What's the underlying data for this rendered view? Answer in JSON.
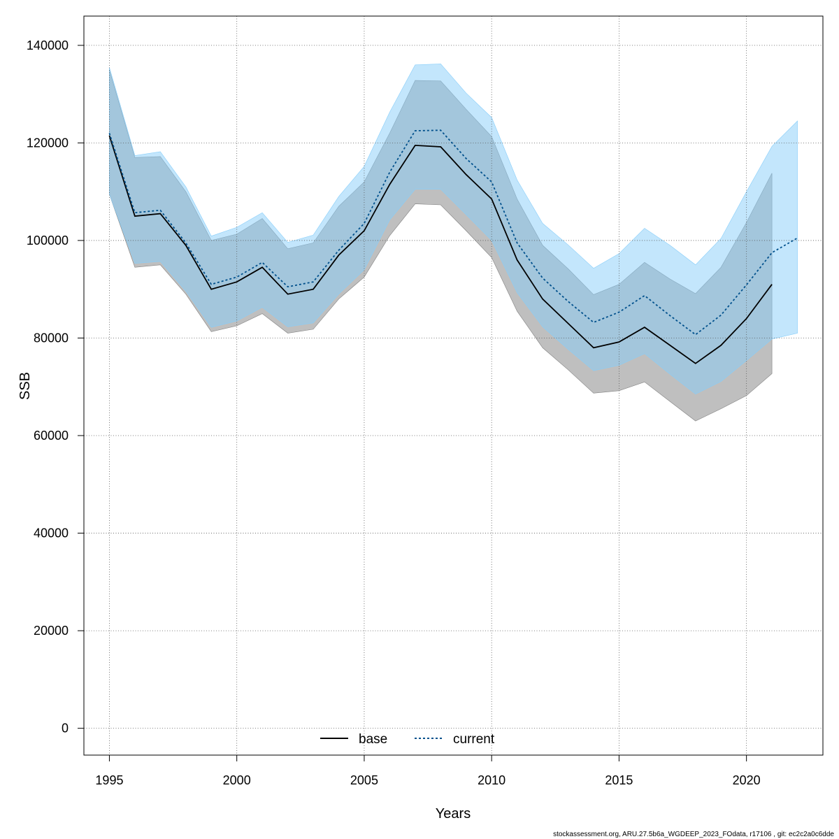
{
  "chart_data": {
    "type": "line",
    "xlabel": "Years",
    "ylabel": "SSB",
    "xlim": [
      1994,
      2023
    ],
    "ylim": [
      -5500,
      146000
    ],
    "x_ticks": [
      1995,
      2000,
      2005,
      2010,
      2015,
      2020
    ],
    "y_ticks": [
      0,
      20000,
      40000,
      60000,
      80000,
      100000,
      120000,
      140000
    ],
    "x_tick_labels": [
      "1995",
      "2000",
      "2005",
      "2010",
      "2015",
      "2020"
    ],
    "y_tick_labels": [
      "0",
      "20000",
      "40000",
      "60000",
      "80000",
      "100000",
      "120000",
      "140000"
    ],
    "grid": true,
    "legend_position": "bottom-center",
    "series": [
      {
        "name": "base",
        "line_style": "solid",
        "color": "#000000",
        "band_color": "#808080",
        "x": [
          1995,
          1996,
          1997,
          1998,
          1999,
          2000,
          2001,
          2002,
          2003,
          2004,
          2005,
          2006,
          2007,
          2008,
          2009,
          2010,
          2011,
          2012,
          2013,
          2014,
          2015,
          2016,
          2017,
          2018,
          2019,
          2020,
          2021
        ],
        "values": [
          121500,
          105000,
          105500,
          99000,
          90000,
          91500,
          94500,
          89000,
          90000,
          97000,
          102000,
          111500,
          119500,
          119200,
          113500,
          108500,
          96000,
          88000,
          83000,
          78000,
          79200,
          82200,
          78500,
          74800,
          78500,
          84000,
          91000
        ],
        "lower": [
          109500,
          94500,
          95000,
          89000,
          81300,
          82500,
          85000,
          81000,
          81800,
          88000,
          92500,
          101000,
          107500,
          107300,
          102000,
          96500,
          85500,
          78000,
          73500,
          68700,
          69200,
          71000,
          67000,
          63000,
          65500,
          68200,
          72700
        ],
        "upper": [
          135000,
          117000,
          117200,
          110000,
          100000,
          101300,
          104500,
          98300,
          99500,
          107000,
          112000,
          122000,
          132800,
          132700,
          126900,
          121300,
          108500,
          99000,
          94200,
          88900,
          91000,
          95500,
          92100,
          89100,
          94500,
          103700,
          113800
        ]
      },
      {
        "name": "current",
        "line_style": "dashed",
        "color": "#00508c",
        "band_color": "#87cefa",
        "x": [
          1995,
          1996,
          1997,
          1998,
          1999,
          2000,
          2001,
          2002,
          2003,
          2004,
          2005,
          2006,
          2007,
          2008,
          2009,
          2010,
          2011,
          2012,
          2013,
          2014,
          2015,
          2016,
          2017,
          2018,
          2019,
          2020,
          2021,
          2022
        ],
        "values": [
          122000,
          105700,
          106200,
          99500,
          91000,
          92500,
          95500,
          90500,
          91500,
          98000,
          103500,
          114000,
          122500,
          122600,
          116800,
          112000,
          99500,
          92300,
          87500,
          83200,
          85300,
          88700,
          84600,
          80700,
          84700,
          90900,
          97500,
          100500
        ],
        "lower": [
          109500,
          95300,
          95700,
          89600,
          82200,
          83500,
          86300,
          82300,
          83100,
          89000,
          94000,
          104200,
          110500,
          110500,
          105300,
          100000,
          89300,
          82300,
          77700,
          73300,
          74400,
          76800,
          72600,
          68500,
          71100,
          75400,
          79800,
          81000
        ],
        "upper": [
          135500,
          117400,
          118200,
          111000,
          100900,
          102700,
          105700,
          99600,
          101100,
          109000,
          115200,
          126300,
          136000,
          136200,
          130200,
          125200,
          112400,
          103500,
          99100,
          94300,
          97300,
          102500,
          99000,
          95000,
          100400,
          110000,
          119300,
          124500
        ]
      }
    ],
    "legend": [
      {
        "label": "base",
        "line_style": "solid",
        "color": "#000000"
      },
      {
        "label": "current",
        "line_style": "dashed",
        "color": "#00508c"
      }
    ]
  },
  "footer": {
    "text": "stockassessment.org, ARU.27.5b6a_WGDEEP_2023_FOdata, r17106 , git: ec2c2a0c6dde"
  }
}
